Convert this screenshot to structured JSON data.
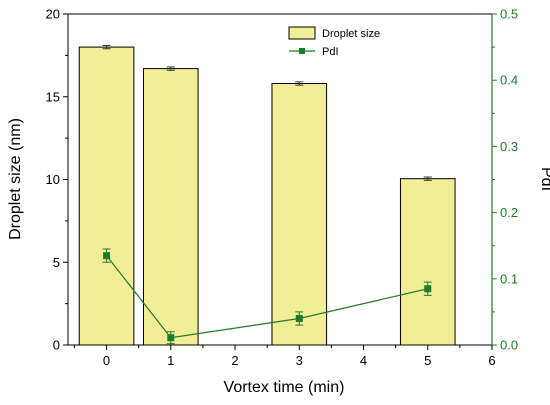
{
  "chart_data": {
    "type": "bar+line",
    "x_ticks": [
      "0",
      "1",
      "2",
      "3",
      "4",
      "5",
      "6"
    ],
    "xlabel": "Vortex time (min)",
    "xlim": [
      -0.6,
      6
    ],
    "ylabel_left": "Droplet size (nm)",
    "ylim_left": [
      0,
      20
    ],
    "yticks_left": [
      "0",
      "5",
      "10",
      "15",
      "20"
    ],
    "ylabel_right": "PdI",
    "ylim_right": [
      0,
      0.5
    ],
    "yticks_right": [
      "0.0",
      "0.1",
      "0.2",
      "0.3",
      "0.4",
      "0.5"
    ],
    "bars": {
      "name": "Droplet size",
      "x": [
        0,
        1,
        3,
        5
      ],
      "values": [
        18.0,
        16.7,
        15.8,
        10.05
      ],
      "errors": [
        0.1,
        0.1,
        0.1,
        0.1
      ],
      "color": "#f2ee98",
      "edge_color": "#000000"
    },
    "line": {
      "name": "PdI",
      "x": [
        0,
        1,
        3,
        5
      ],
      "values": [
        0.135,
        0.011,
        0.04,
        0.085
      ],
      "errors": [
        0.01,
        0.009,
        0.01,
        0.01
      ],
      "color": "#1f7a2a"
    },
    "legend_position": "top-right",
    "right_axis_color": "#1f7a2a",
    "grid": false
  }
}
